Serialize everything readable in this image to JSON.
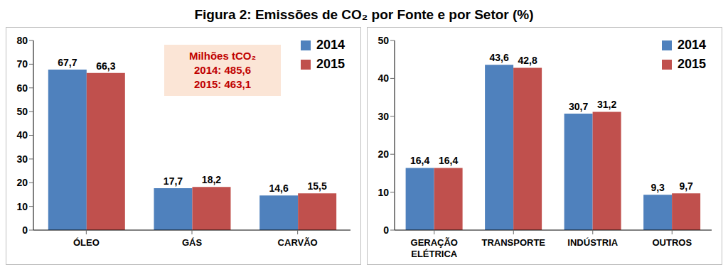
{
  "title": "Figura 2: Emissões de CO₂ por Fonte e por Setor (%)",
  "chart_data": [
    {
      "type": "bar",
      "categories": [
        "ÓLEO",
        "GÁS",
        "CARVÃO"
      ],
      "series": [
        {
          "name": "2014",
          "color": "#4f81bd",
          "values": [
            67.7,
            17.7,
            14.6
          ],
          "value_labels": [
            "67,7",
            "17,7",
            "14,6"
          ]
        },
        {
          "name": "2015",
          "color": "#c0504d",
          "values": [
            66.3,
            18.2,
            15.5
          ],
          "value_labels": [
            "66,3",
            "18,2",
            "15,5"
          ]
        }
      ],
      "ylim": [
        0,
        80
      ],
      "yticks": [
        0,
        10,
        20,
        30,
        40,
        50,
        60,
        70,
        80
      ],
      "grid": false,
      "legend": "upper right",
      "data_labels": true,
      "annotations": [
        "Milhões tCO₂",
        "2014: 485,6",
        "2015: 463,1"
      ]
    },
    {
      "type": "bar",
      "categories": [
        "GERAÇÃO ELÉTRICA",
        "TRANSPORTE",
        "INDÚSTRIA",
        "OUTROS"
      ],
      "series": [
        {
          "name": "2014",
          "color": "#4f81bd",
          "values": [
            16.4,
            43.6,
            30.7,
            9.3
          ],
          "value_labels": [
            "16,4",
            "43,6",
            "30,7",
            "9,3"
          ]
        },
        {
          "name": "2015",
          "color": "#c0504d",
          "values": [
            16.4,
            42.8,
            31.2,
            9.7
          ],
          "value_labels": [
            "16,4",
            "42,8",
            "31,2",
            "9,7"
          ]
        }
      ],
      "ylim": [
        0,
        50
      ],
      "yticks": [
        0,
        10,
        20,
        30,
        40,
        50
      ],
      "grid": false,
      "legend": "upper right",
      "data_labels": true
    }
  ]
}
